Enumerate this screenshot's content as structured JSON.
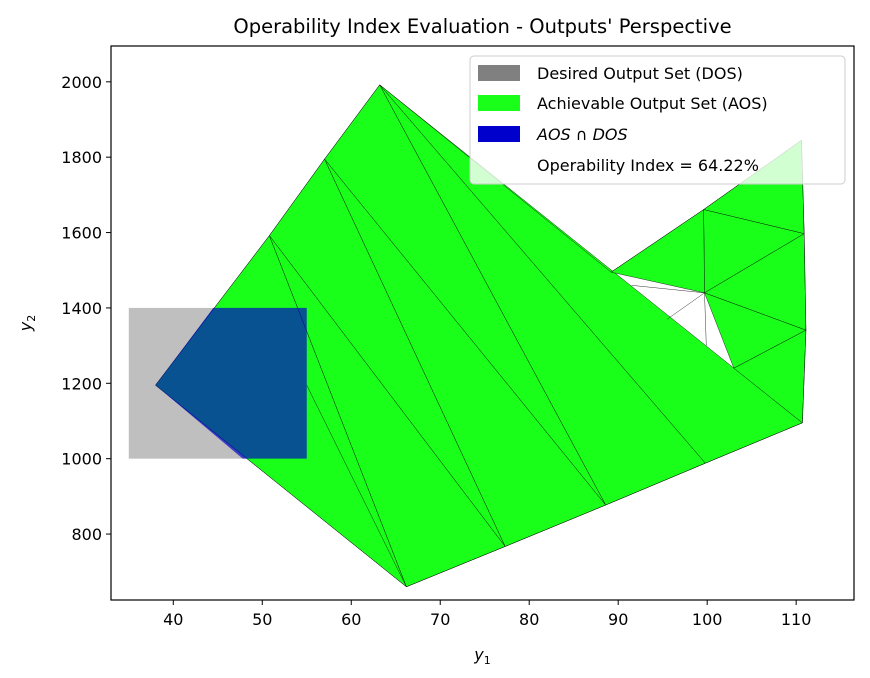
{
  "chart_data": {
    "type": "area",
    "title": "Operability Index Evaluation - Outputs' Perspective",
    "xlabel": {
      "base": "y",
      "sub": "1"
    },
    "ylabel": {
      "base": "y",
      "sub": "2"
    },
    "xlim": [
      33,
      116.5
    ],
    "ylim": [
      625,
      2095
    ],
    "xticks": [
      40,
      50,
      60,
      70,
      80,
      90,
      100,
      110
    ],
    "yticks": [
      800,
      1000,
      1200,
      1400,
      1600,
      1800,
      2000
    ],
    "colors": {
      "dos": "#808080",
      "aos": "#1aff1a",
      "intersection": "#0000cc",
      "edge": "#000000"
    },
    "dos_rect": {
      "x": [
        35,
        55
      ],
      "y": [
        1000,
        1400
      ]
    },
    "aos_vertices": [
      [
        66.2,
        660
      ],
      [
        77.3,
        767
      ],
      [
        88.6,
        877
      ],
      [
        99.8,
        988
      ],
      [
        110.7,
        1095
      ],
      [
        111.1,
        1341
      ],
      [
        110.9,
        1597
      ],
      [
        110.6,
        1845
      ],
      [
        99.6,
        1661
      ],
      [
        89.2,
        1495
      ],
      [
        63.2,
        1992
      ],
      [
        57,
        1795
      ],
      [
        50.8,
        1592
      ],
      [
        38,
        1195
      ]
    ],
    "aos_triangles": [
      [
        [
          66.2,
          660
        ],
        [
          38,
          1195
        ],
        [
          50.8,
          1592
        ]
      ],
      [
        [
          66.2,
          660
        ],
        [
          50.8,
          1592
        ],
        [
          77.3,
          767
        ]
      ],
      [
        [
          77.3,
          767
        ],
        [
          50.8,
          1592
        ],
        [
          57,
          1795
        ]
      ],
      [
        [
          77.3,
          767
        ],
        [
          57,
          1795
        ],
        [
          88.6,
          877
        ]
      ],
      [
        [
          88.6,
          877
        ],
        [
          57,
          1795
        ],
        [
          63.2,
          1992
        ]
      ],
      [
        [
          88.6,
          877
        ],
        [
          63.2,
          1992
        ],
        [
          99.8,
          988
        ]
      ],
      [
        [
          99.8,
          988
        ],
        [
          63.2,
          1992
        ],
        [
          110.7,
          1095
        ]
      ],
      [
        [
          99.6,
          1661
        ],
        [
          110.6,
          1845
        ],
        [
          110.9,
          1597
        ]
      ],
      [
        [
          99.6,
          1661
        ],
        [
          110.9,
          1597
        ],
        [
          99.7,
          1440
        ]
      ],
      [
        [
          99.7,
          1440
        ],
        [
          110.9,
          1597
        ],
        [
          111.1,
          1341
        ]
      ],
      [
        [
          99.7,
          1440
        ],
        [
          111.1,
          1341
        ],
        [
          103,
          1240
        ]
      ],
      [
        [
          103,
          1240
        ],
        [
          111.1,
          1341
        ],
        [
          110.7,
          1095
        ]
      ],
      [
        [
          89.2,
          1495
        ],
        [
          99.6,
          1661
        ],
        [
          99.7,
          1440
        ]
      ]
    ],
    "aos_extra_edges": [
      [
        [
          55,
          1195
        ],
        [
          66.2,
          660
        ]
      ],
      [
        [
          99.7,
          1440
        ],
        [
          99.9,
          1300
        ]
      ],
      [
        [
          99.7,
          1440
        ],
        [
          95.5,
          1370
        ]
      ],
      [
        [
          91.5,
          1460
        ],
        [
          99.7,
          1440
        ]
      ]
    ],
    "intersection_vertices": [
      [
        38,
        1195
      ],
      [
        44.5,
        1400
      ],
      [
        55,
        1400
      ],
      [
        55,
        1000
      ],
      [
        47.8,
        1000
      ]
    ],
    "legend": {
      "position": "top-right",
      "entries": [
        {
          "label": "Desired Output Set (DOS)",
          "swatch": "dos"
        },
        {
          "label": "Achievable Output Set (AOS)",
          "swatch": "aos"
        },
        {
          "label": "AOS ∩ DOS",
          "swatch": "intersection",
          "math": true
        },
        {
          "label": "Operability Index = 64.22%",
          "swatch": "none"
        }
      ]
    }
  }
}
